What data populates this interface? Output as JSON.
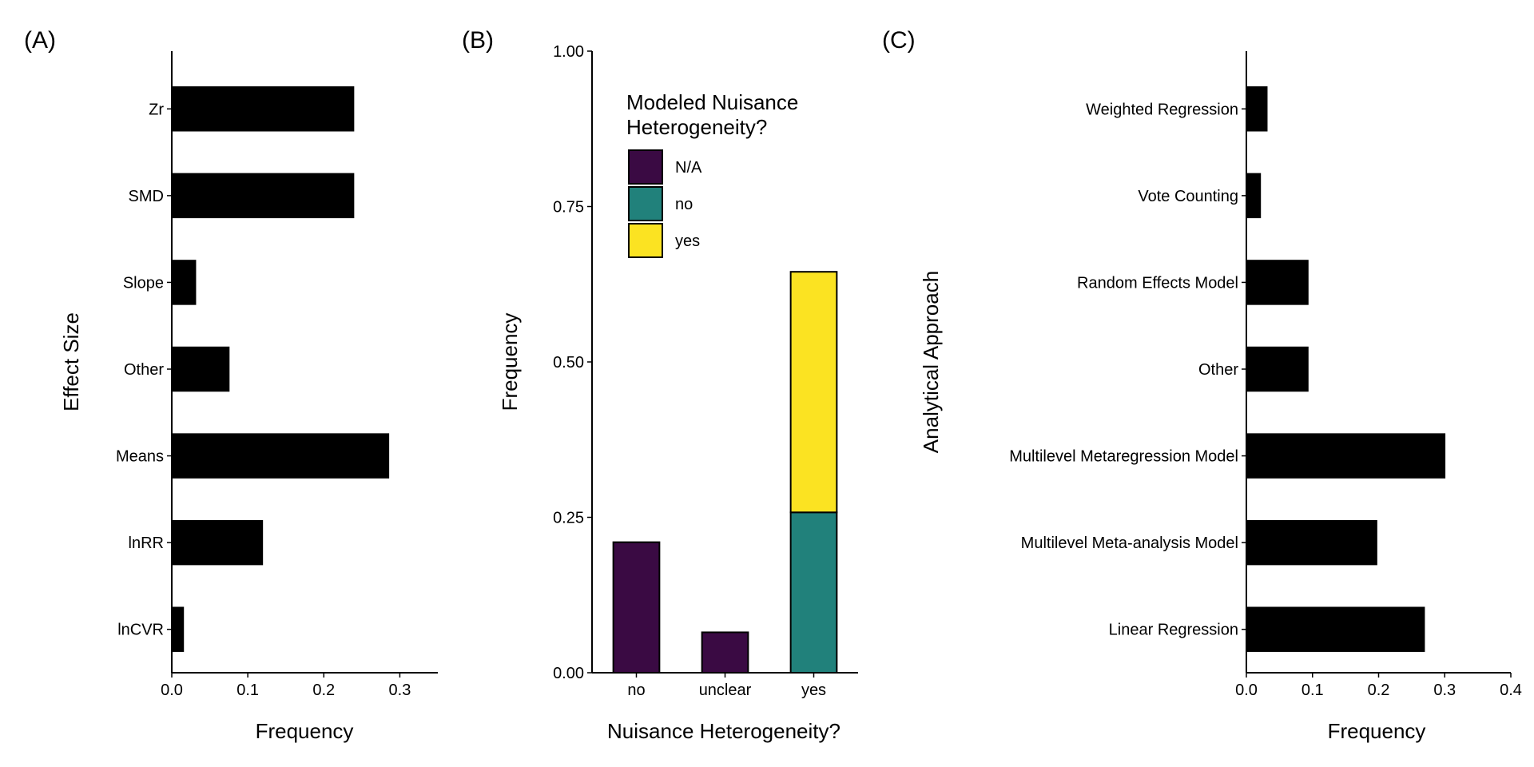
{
  "colors": {
    "bar": "#000000",
    "NA": "#3a0a43",
    "no": "#21817b",
    "yes": "#fbe322"
  },
  "chart_data": [
    {
      "panel": "(A)",
      "type": "bar",
      "orientation": "horizontal",
      "categories": [
        "Zr",
        "SMD",
        "Slope",
        "Other",
        "Means",
        "lnRR",
        "lnCVR"
      ],
      "values": [
        0.24,
        0.24,
        0.032,
        0.076,
        0.286,
        0.12,
        0.016
      ],
      "xlabel": "Frequency",
      "ylabel": "Effect Size",
      "xlim": [
        0,
        0.35
      ],
      "xticks": [
        "0.0",
        "0.1",
        "0.2",
        "0.3"
      ],
      "xtick_values": [
        0,
        0.1,
        0.2,
        0.3
      ]
    },
    {
      "panel": "(B)",
      "type": "bar",
      "stacked": true,
      "categories": [
        "no",
        "unclear",
        "yes"
      ],
      "series": [
        {
          "name": "N/A",
          "color_key": "NA",
          "values": [
            0.21,
            0.065,
            0
          ]
        },
        {
          "name": "no",
          "color_key": "no",
          "values": [
            0,
            0,
            0.258
          ]
        },
        {
          "name": "yes",
          "color_key": "yes",
          "values": [
            0,
            0,
            0.387
          ]
        }
      ],
      "xlabel": "Nuisance Heterogeneity?",
      "ylabel": "Frequency",
      "ylim": [
        0,
        1
      ],
      "yticks": [
        "0.00",
        "0.25",
        "0.50",
        "0.75",
        "1.00"
      ],
      "ytick_values": [
        0,
        0.25,
        0.5,
        0.75,
        1.0
      ],
      "legend": {
        "title_lines": [
          "Modeled Nuisance",
          "Heterogeneity?"
        ],
        "placement": "top-center",
        "entries": [
          {
            "label": "N/A",
            "color_key": "NA"
          },
          {
            "label": "no",
            "color_key": "no"
          },
          {
            "label": "yes",
            "color_key": "yes"
          }
        ]
      }
    },
    {
      "panel": "(C)",
      "type": "bar",
      "orientation": "horizontal",
      "categories": [
        "Weighted Regression",
        "Vote Counting",
        "Random Effects Model",
        "Other",
        "Multilevel Metaregression Model",
        "Multilevel Meta-analysis Model",
        "Linear Regression"
      ],
      "values": [
        0.032,
        0.022,
        0.094,
        0.094,
        0.301,
        0.198,
        0.27
      ],
      "xlabel": "Frequency",
      "ylabel": "Analytical Approach",
      "xlim": [
        0,
        0.4
      ],
      "xticks": [
        "0.0",
        "0.1",
        "0.2",
        "0.3",
        "0.4"
      ],
      "xtick_values": [
        0,
        0.1,
        0.2,
        0.3,
        0.4
      ]
    }
  ]
}
